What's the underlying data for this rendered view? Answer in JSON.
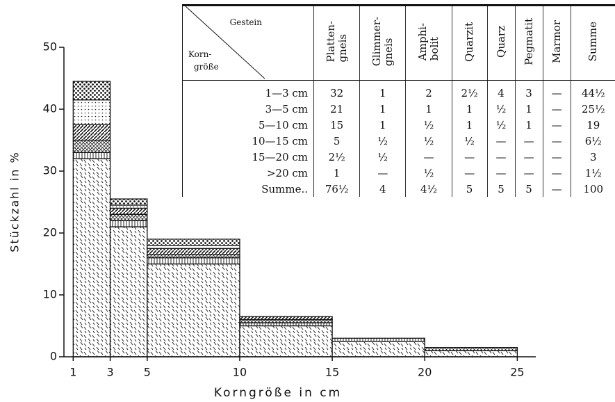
{
  "chart_data": {
    "type": "histogram",
    "xlabel": "Korngröße in cm",
    "ylabel": "Stückzahl in %",
    "bins": [
      1,
      3,
      5,
      10,
      15,
      20,
      25
    ],
    "series": [
      {
        "values": [
          32,
          21,
          15,
          5,
          2.5,
          1
        ]
      },
      {
        "values": [
          1,
          1,
          1,
          0.5,
          0.5,
          0
        ]
      },
      {
        "values": [
          2,
          1,
          0.5,
          0.5,
          0,
          0.5
        ]
      },
      {
        "values": [
          2.5,
          1,
          1,
          0.5,
          0,
          0
        ]
      },
      {
        "values": [
          4,
          0.5,
          0.5,
          0,
          0,
          0
        ]
      },
      {
        "values": [
          3,
          1,
          1,
          0,
          0,
          0
        ]
      },
      {
        "values": [
          0,
          0,
          0,
          0,
          0,
          0
        ]
      }
    ],
    "stacked": true,
    "xlim": [
      0.5,
      26
    ],
    "xticks": [
      1,
      3,
      5,
      10,
      15,
      20,
      25
    ],
    "ylim": [
      0,
      50
    ],
    "yticks": [
      0,
      10,
      20,
      30,
      40,
      50
    ]
  },
  "table": {
    "corner": {
      "top": "Gestein",
      "bottom": [
        "Korn-",
        "größe"
      ]
    },
    "columns": [
      [
        "Platten-",
        "gneis"
      ],
      [
        "Glimmer-",
        "gneis"
      ],
      [
        "Amphi-",
        "bolit"
      ],
      [
        "Quarzit"
      ],
      [
        "Quarz"
      ],
      [
        "Pegmatit"
      ],
      [
        "Marmor"
      ],
      [
        "Summe"
      ]
    ],
    "rows": [
      [
        "1—3 cm",
        "32",
        "1",
        "2",
        "2½",
        "4",
        "3",
        "—",
        "44½"
      ],
      [
        "3—5 cm",
        "21",
        "1",
        "1",
        "1",
        "½",
        "1",
        "—",
        "25½"
      ],
      [
        "5—10 cm",
        "15",
        "1",
        "½",
        "1",
        "½",
        "1",
        "—",
        "19"
      ],
      [
        "10—15 cm",
        "5",
        "½",
        "½",
        "½",
        "—",
        "—",
        "—",
        "6½"
      ],
      [
        "15—20 cm",
        "2½",
        "½",
        "—",
        "—",
        "—",
        "—",
        "—",
        "3"
      ],
      [
        ">20 cm",
        "1",
        "—",
        "½",
        "—",
        "—",
        "—",
        "—",
        "1½"
      ],
      [
        "Summe..",
        "76½",
        "4",
        "4½",
        "5",
        "5",
        "5",
        "—",
        "100"
      ]
    ]
  }
}
